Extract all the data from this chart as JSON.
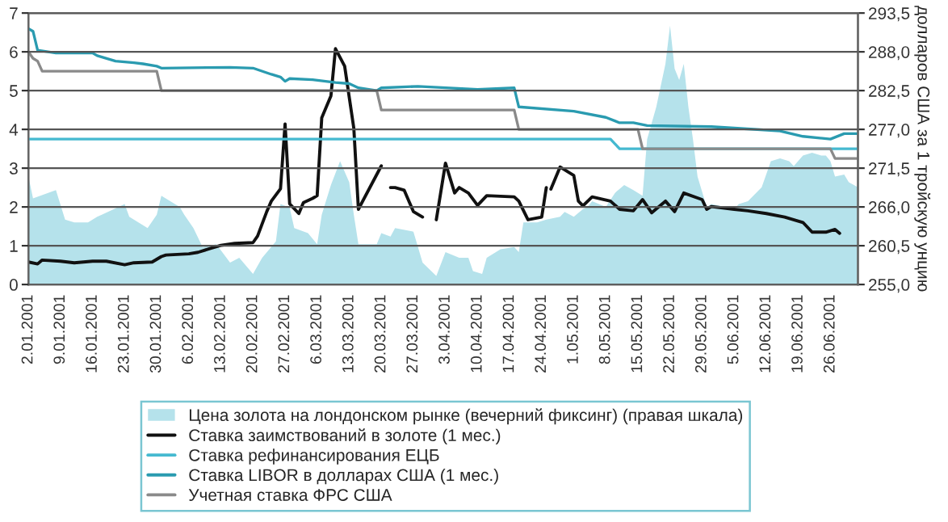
{
  "chart_data": {
    "type": "line",
    "xlim": [
      "2001-01-02",
      "2001-07-02"
    ],
    "xticks": [
      {
        "value": "2001-01-02",
        "label": "2.01.2001"
      },
      {
        "value": "2001-01-09",
        "label": "9.01.2001"
      },
      {
        "value": "2001-01-16",
        "label": "16.01.2001"
      },
      {
        "value": "2001-01-23",
        "label": "23.01.2001"
      },
      {
        "value": "2001-01-30",
        "label": "30.01.2001"
      },
      {
        "value": "2001-02-06",
        "label": "6.02.2001"
      },
      {
        "value": "2001-02-13",
        "label": "13.02.2001"
      },
      {
        "value": "2001-02-20",
        "label": "20.02.2001"
      },
      {
        "value": "2001-02-27",
        "label": "27.02.2001"
      },
      {
        "value": "2001-03-06",
        "label": "6.03.2001"
      },
      {
        "value": "2001-03-13",
        "label": "13.03.2001"
      },
      {
        "value": "2001-03-20",
        "label": "20.03.2001"
      },
      {
        "value": "2001-03-27",
        "label": "27.03.2001"
      },
      {
        "value": "2001-04-03",
        "label": "3.04.2001"
      },
      {
        "value": "2001-04-10",
        "label": "10.04.2001"
      },
      {
        "value": "2001-04-17",
        "label": "17.04.2001"
      },
      {
        "value": "2001-04-24",
        "label": "24.04.2001"
      },
      {
        "value": "2001-05-01",
        "label": "1.05.2001"
      },
      {
        "value": "2001-05-08",
        "label": "8.05.2001"
      },
      {
        "value": "2001-05-15",
        "label": "15.05.2001"
      },
      {
        "value": "2001-05-22",
        "label": "22.05.2001"
      },
      {
        "value": "2001-05-29",
        "label": "29.05.2001"
      },
      {
        "value": "2001-06-05",
        "label": "5.06.2001"
      },
      {
        "value": "2001-06-12",
        "label": "12.06.2001"
      },
      {
        "value": "2001-06-19",
        "label": "19.06.2001"
      },
      {
        "value": "2001-06-26",
        "label": "26.06.2001"
      }
    ],
    "ylim": [
      0,
      7
    ],
    "yticks": [
      0,
      1,
      2,
      3,
      4,
      5,
      6,
      7
    ],
    "y2lim": [
      255.0,
      293.5
    ],
    "y2ticks": [
      {
        "value": 255.0,
        "label": "255,0"
      },
      {
        "value": 260.5,
        "label": "260,5"
      },
      {
        "value": 266.0,
        "label": "266,0"
      },
      {
        "value": 271.5,
        "label": "271,5"
      },
      {
        "value": 277.0,
        "label": "277,0"
      },
      {
        "value": 282.5,
        "label": "282,5"
      },
      {
        "value": 288.0,
        "label": "288,0"
      },
      {
        "value": 293.5,
        "label": "293,5"
      }
    ],
    "y2label": "долларов США за 1 тройскую унцию",
    "grid": "y",
    "legend": "bottom",
    "series": [
      {
        "name": "Цена золота на лондонском рынке (вечерний фиксинг) (правая шкала)",
        "type": "area",
        "axis": "y2",
        "color": "#b5e2eb",
        "x": [
          "2001-01-02",
          "2001-01-03",
          "2001-01-08",
          "2001-01-10",
          "2001-01-12",
          "2001-01-15",
          "2001-01-17",
          "2001-01-18",
          "2001-01-23",
          "2001-01-24",
          "2001-01-27",
          "2001-01-28",
          "2001-01-30",
          "2001-01-31",
          "2001-02-04",
          "2001-02-05",
          "2001-02-07",
          "2001-02-09",
          "2001-02-12",
          "2001-02-15",
          "2001-02-17",
          "2001-02-20",
          "2001-02-22",
          "2001-02-25",
          "2001-02-26",
          "2001-02-28",
          "2001-03-01",
          "2001-03-04",
          "2001-03-06",
          "2001-03-07",
          "2001-03-09",
          "2001-03-11",
          "2001-03-13",
          "2001-03-14",
          "2001-03-15",
          "2001-03-19",
          "2001-03-20",
          "2001-03-22",
          "2001-03-23",
          "2001-03-27",
          "2001-03-28",
          "2001-03-29",
          "2001-04-01",
          "2001-04-03",
          "2001-04-06",
          "2001-04-08",
          "2001-04-09",
          "2001-04-11",
          "2001-04-12",
          "2001-04-15",
          "2001-04-18",
          "2001-04-19",
          "2001-04-20",
          "2001-04-23",
          "2001-04-25",
          "2001-04-28",
          "2001-04-29",
          "2001-05-01",
          "2001-05-03",
          "2001-05-04",
          "2001-05-05",
          "2001-05-08",
          "2001-05-10",
          "2001-05-12",
          "2001-05-14",
          "2001-05-16",
          "2001-05-17",
          "2001-05-19",
          "2001-05-21",
          "2001-05-22",
          "2001-05-23",
          "2001-05-24",
          "2001-05-25",
          "2001-05-26",
          "2001-05-27",
          "2001-05-28",
          "2001-05-30",
          "2001-05-31",
          "2001-06-03",
          "2001-06-05",
          "2001-06-06",
          "2001-06-08",
          "2001-06-11",
          "2001-06-13",
          "2001-06-15",
          "2001-06-17",
          "2001-06-18",
          "2001-06-20",
          "2001-06-22",
          "2001-06-24",
          "2001-06-25",
          "2001-06-26",
          "2001-06-27",
          "2001-06-29",
          "2001-06-30",
          "2001-07-02"
        ],
        "values": [
          270.3,
          267.2,
          268.4,
          264.2,
          263.8,
          263.8,
          264.6,
          264.9,
          266.4,
          264.6,
          263.4,
          263.0,
          264.9,
          267.6,
          266.0,
          264.9,
          263.0,
          260.3,
          260.7,
          258.1,
          258.8,
          256.5,
          258.8,
          261.1,
          266.4,
          265.9,
          263.0,
          262.3,
          260.7,
          264.9,
          269.1,
          272.5,
          269.5,
          264.9,
          260.7,
          260.7,
          262.3,
          261.8,
          263.0,
          262.5,
          260.3,
          258.1,
          256.2,
          259.6,
          258.8,
          258.8,
          256.9,
          256.5,
          258.8,
          260.0,
          260.3,
          259.6,
          263.8,
          263.8,
          264.2,
          264.6,
          265.3,
          264.6,
          265.7,
          266.0,
          266.8,
          266.0,
          268.0,
          269.1,
          268.4,
          267.6,
          275.6,
          280.2,
          286.3,
          291.7,
          285.6,
          284.0,
          286.3,
          280.2,
          275.6,
          270.3,
          266.0,
          266.4,
          266.0,
          265.7,
          266.4,
          266.8,
          268.8,
          272.5,
          272.9,
          272.5,
          271.8,
          273.3,
          273.7,
          273.3,
          273.3,
          272.5,
          270.3,
          270.6,
          269.5,
          268.8
        ]
      },
      {
        "name": "Ставка заимствований в золоте (1 мес.)",
        "color": "#111111",
        "x": [
          "2001-01-02",
          "2001-01-04",
          "2001-01-05",
          "2001-01-09",
          "2001-01-12",
          "2001-01-16",
          "2001-01-19",
          "2001-01-23",
          "2001-01-25",
          "2001-01-29",
          "2001-01-31",
          "2001-02-01",
          "2001-02-06",
          "2001-02-08",
          "2001-02-11",
          "2001-02-13",
          "2001-02-16",
          "2001-02-20",
          "2001-02-21",
          "2001-02-23",
          "2001-02-24",
          "2001-02-26",
          "2001-02-27",
          "2001-02-28",
          "2001-03-02",
          "2001-03-03",
          "2001-03-05",
          "2001-03-06",
          "2001-03-07",
          "2001-03-09",
          "2001-03-10",
          "2001-03-12",
          "2001-03-14",
          "2001-03-15",
          "2001-03-20",
          "2001-03-21",
          "2001-03-22",
          "2001-03-23",
          "2001-03-25",
          "2001-03-27",
          "2001-03-29",
          "2001-03-30",
          "2001-04-01",
          "2001-04-03",
          "2001-04-05",
          "2001-04-06",
          "2001-04-08",
          "2001-04-10",
          "2001-04-12",
          "2001-04-18",
          "2001-04-19",
          "2001-04-21",
          "2001-04-24",
          "2001-04-25",
          "2001-04-25T12:00",
          "2001-04-26",
          "2001-04-28",
          "2001-05-01",
          "2001-05-02",
          "2001-05-03",
          "2001-05-05",
          "2001-05-09",
          "2001-05-11",
          "2001-05-14",
          "2001-05-16",
          "2001-05-18",
          "2001-05-21",
          "2001-05-23",
          "2001-05-25",
          "2001-05-29",
          "2001-05-30",
          "2001-05-31",
          "2001-06-05",
          "2001-06-08",
          "2001-06-12",
          "2001-06-16",
          "2001-06-20",
          "2001-06-22",
          "2001-06-25",
          "2001-06-27",
          "2001-06-28"
        ],
        "values": [
          0.58,
          0.53,
          0.63,
          0.6,
          0.56,
          0.6,
          0.6,
          0.51,
          0.56,
          0.58,
          0.72,
          0.76,
          0.79,
          0.83,
          0.94,
          1.01,
          1.06,
          1.08,
          1.25,
          1.88,
          2.15,
          2.47,
          4.14,
          2.08,
          1.83,
          2.11,
          2.22,
          2.29,
          4.3,
          4.86,
          6.08,
          5.63,
          4.03,
          1.94,
          3.06,
          null,
          2.5,
          2.5,
          2.43,
          1.88,
          1.74,
          null,
          1.67,
          3.13,
          2.36,
          2.5,
          2.36,
          2.04,
          2.29,
          2.26,
          2.15,
          1.67,
          1.74,
          2.5,
          null,
          2.46,
          3.03,
          2.81,
          2.15,
          2.03,
          2.26,
          2.15,
          1.94,
          1.9,
          2.19,
          1.85,
          2.15,
          1.88,
          2.36,
          2.19,
          1.94,
          2.01,
          1.94,
          1.9,
          1.83,
          1.74,
          1.6,
          1.35,
          1.35,
          1.42,
          1.32
        ]
      },
      {
        "name": "Ставка рефинансирования ЕЦБ",
        "color": "#45b9d0",
        "x": [
          "2001-01-02",
          "2001-05-09",
          "2001-05-11",
          "2001-07-02"
        ],
        "values": [
          3.75,
          3.75,
          3.5,
          3.5
        ]
      },
      {
        "name": "Ставка LIBOR в долларах США (1 мес.)",
        "color": "#2a9bb0",
        "x": [
          "2001-01-02",
          "2001-01-03",
          "2001-01-04",
          "2001-01-08",
          "2001-01-16",
          "2001-01-17",
          "2001-01-21",
          "2001-01-25",
          "2001-01-27",
          "2001-01-30",
          "2001-01-31",
          "2001-02-15",
          "2001-02-20",
          "2001-02-24",
          "2001-02-26",
          "2001-02-27",
          "2001-02-28",
          "2001-03-05",
          "2001-03-10",
          "2001-03-13",
          "2001-03-15",
          "2001-03-19",
          "2001-03-20",
          "2001-03-28",
          "2001-04-10",
          "2001-04-18",
          "2001-04-19",
          "2001-05-01",
          "2001-05-08",
          "2001-05-11",
          "2001-05-14",
          "2001-05-17",
          "2001-05-31",
          "2001-06-15",
          "2001-06-20",
          "2001-06-26",
          "2001-06-29",
          "2001-07-02"
        ],
        "values": [
          6.6,
          6.53,
          6.04,
          5.97,
          5.97,
          5.9,
          5.76,
          5.72,
          5.69,
          5.63,
          5.58,
          5.6,
          5.58,
          5.42,
          5.35,
          5.24,
          5.31,
          5.28,
          5.21,
          5.18,
          5.07,
          5.0,
          5.07,
          5.11,
          5.03,
          5.07,
          4.58,
          4.47,
          4.31,
          4.17,
          4.17,
          4.1,
          4.07,
          3.96,
          3.82,
          3.75,
          3.89,
          3.89
        ]
      },
      {
        "name": "Учетная ставка ФРС США",
        "color": "#8a8a8a",
        "x": [
          "2001-01-02",
          "2001-01-03",
          "2001-01-04",
          "2001-01-05",
          "2001-01-30",
          "2001-01-31",
          "2001-03-19",
          "2001-03-20",
          "2001-04-18",
          "2001-04-19",
          "2001-05-15",
          "2001-05-16",
          "2001-06-26",
          "2001-06-27",
          "2001-07-02"
        ],
        "values": [
          6.0,
          5.83,
          5.76,
          5.5,
          5.5,
          5.0,
          5.0,
          4.5,
          4.5,
          4.0,
          4.0,
          3.5,
          3.5,
          3.25,
          3.25
        ]
      }
    ]
  }
}
